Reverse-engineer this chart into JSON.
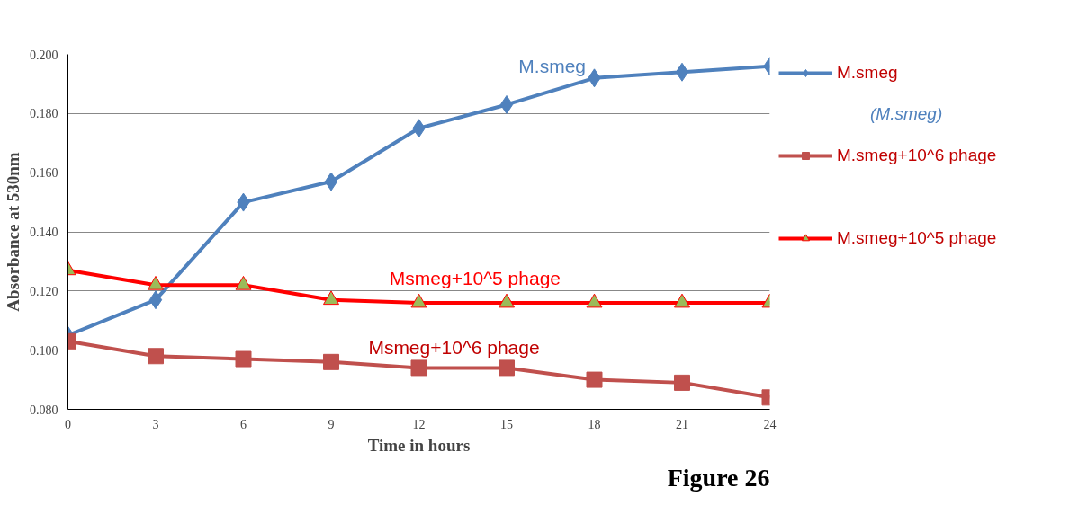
{
  "chart_data": {
    "type": "line",
    "xlabel": "Time in hours",
    "ylabel": "Absorbance at 530nm",
    "x": [
      0,
      3,
      6,
      9,
      12,
      15,
      18,
      21,
      24
    ],
    "xlim": [
      0,
      24
    ],
    "xticks": [
      0,
      3,
      6,
      9,
      12,
      15,
      18,
      21,
      24
    ],
    "ylim": [
      0.08,
      0.2
    ],
    "yticks": [
      {
        "value": 0.08,
        "label": "0.080"
      },
      {
        "value": 0.1,
        "label": "0.100"
      },
      {
        "value": 0.12,
        "label": "0.120"
      },
      {
        "value": 0.14,
        "label": "0.140"
      },
      {
        "value": 0.16,
        "label": "0.160"
      },
      {
        "value": 0.18,
        "label": "0.180"
      },
      {
        "value": 0.2,
        "label": "0.200"
      }
    ],
    "grid": "y",
    "legend": "right",
    "line_style": "solid",
    "series": [
      {
        "name": "M.smeg",
        "color": "#4f81bd",
        "marker": "diamond",
        "values": [
          0.105,
          0.117,
          0.15,
          0.157,
          0.175,
          0.183,
          0.192,
          0.194,
          0.196
        ]
      },
      {
        "name": "M.smeg+10^6 phage",
        "color": "#c0504d",
        "marker": "square",
        "values": [
          0.103,
          0.098,
          0.097,
          0.096,
          0.094,
          0.094,
          0.09,
          0.089,
          0.084
        ]
      },
      {
        "name": "M.smeg+10^5 phage",
        "color": "#ff0000",
        "marker": "triangle",
        "values": [
          0.127,
          0.122,
          0.122,
          0.117,
          0.116,
          0.116,
          0.116,
          0.116,
          0.116
        ]
      }
    ],
    "annotations": [
      "M.smeg",
      "Msmeg+10^5 phage",
      "Msmeg+10^6 phage",
      "(M.smeg)",
      "Figure 26"
    ]
  }
}
